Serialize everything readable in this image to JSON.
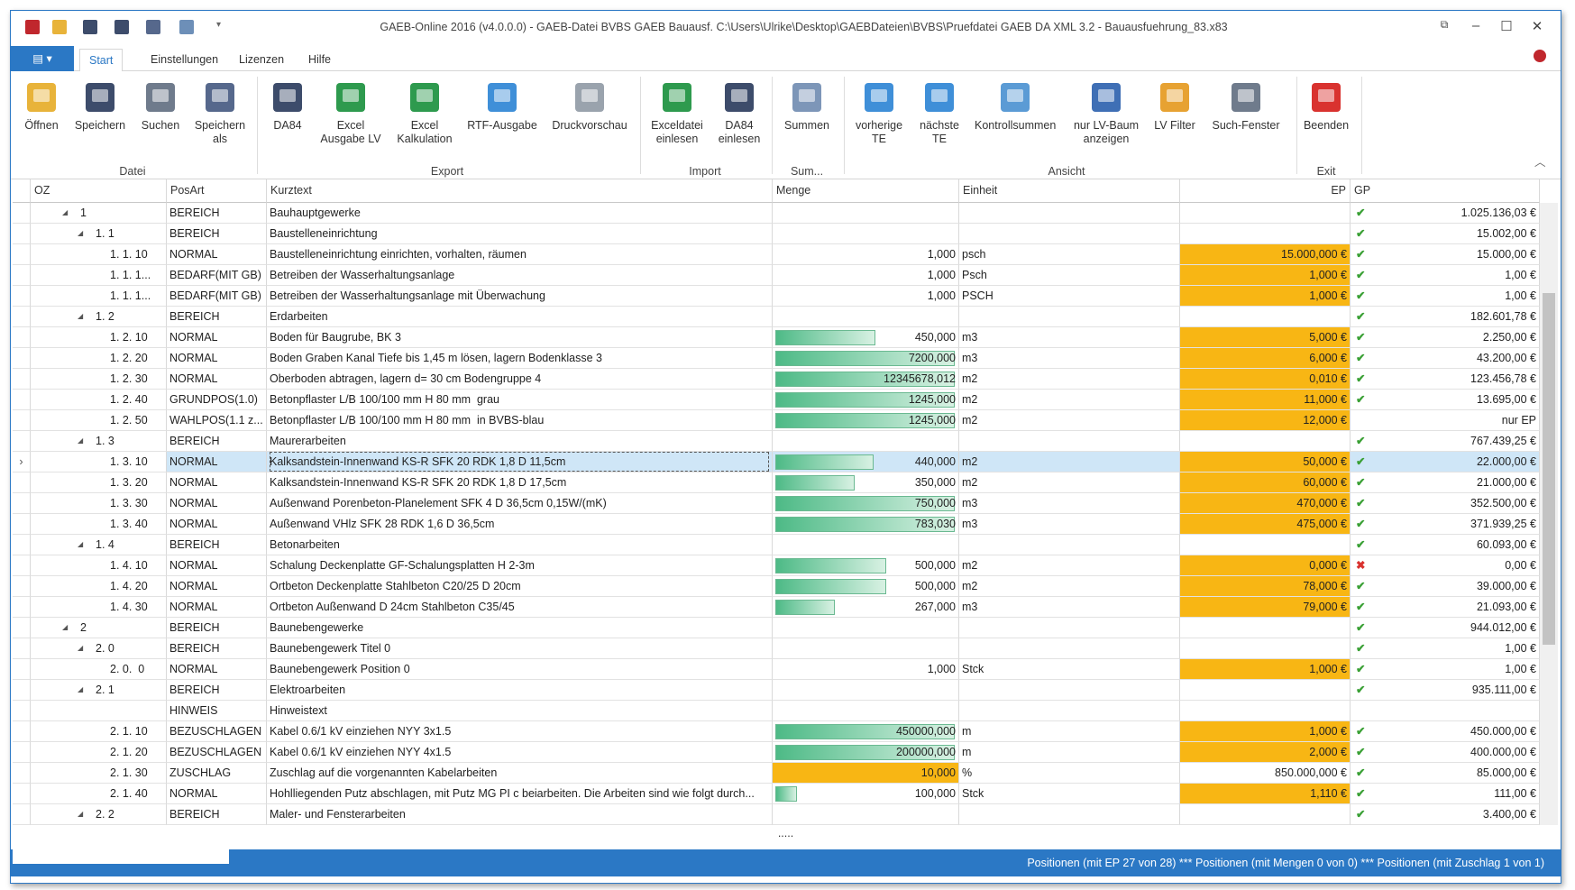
{
  "window": {
    "title": "GAEB-Online 2016 (v4.0.0.0) - GAEB-Datei  BVBS GAEB Bauausf. C:\\Users\\Ulrike\\Desktop\\GAEBDateien\\BVBS\\Pruefdatei GAEB DA XML 3.2 - Bauausfuehrung_83.x83"
  },
  "tabs": [
    "Start",
    "Einstellungen",
    "Lizenzen",
    "Hilfe"
  ],
  "ribbon": {
    "groups": [
      {
        "label": "Datei",
        "buttons": [
          "Öffnen",
          "Speichern",
          "Suchen",
          "Speichern\nals"
        ]
      },
      {
        "label": "Export",
        "buttons": [
          "DA84",
          "Excel\nAusgabe LV",
          "Excel\nKalkulation",
          "RTF-Ausgabe",
          "Druckvorschau"
        ]
      },
      {
        "label": "Import",
        "buttons": [
          "Exceldatei\neinlesen",
          "DA84\neinlesen"
        ]
      },
      {
        "label": "Sum...",
        "buttons": [
          "Summen"
        ]
      },
      {
        "label": "Ansicht",
        "buttons": [
          "vorherige\nTE",
          "nächste\nTE",
          "Kontrollsummen",
          "nur LV-Baum\nanzeigen",
          "LV Filter",
          "Such-Fenster"
        ]
      },
      {
        "label": "Exit",
        "buttons": [
          "Beenden"
        ]
      }
    ]
  },
  "table": {
    "columns": [
      "OZ",
      "PosArt",
      "Kurztext",
      "Menge",
      "Einheit",
      "EP",
      "GP"
    ],
    "rows": [
      {
        "oz": "1",
        "posart": "BEREICH",
        "kurztext": "Bauhauptgewerke",
        "check": "ok",
        "gp": "1.025.136,03 €"
      },
      {
        "oz": "1. 1",
        "posart": "BEREICH",
        "kurztext": "Baustelleneinrichtung",
        "check": "ok",
        "gp": "15.002,00 €"
      },
      {
        "oz": "1. 1. 10",
        "posart": "NORMAL",
        "kurztext": "Baustelleneinrichtung einrichten, vorhalten, räumen",
        "menge": "1,000",
        "einheit": "psch",
        "ep": "15.000,000 €",
        "highlight": "ep",
        "check": "ok",
        "gp": "15.000,00 €"
      },
      {
        "oz": "1. 1. 1...",
        "posart": "BEDARF(MIT GB)",
        "kurztext": "Betreiben der Wasserhaltungsanlage",
        "menge": "1,000",
        "einheit": "Psch",
        "ep": "1,000 €",
        "highlight": "ep",
        "check": "ok",
        "gp": "1,00 €"
      },
      {
        "oz": "1. 1. 1...",
        "posart": "BEDARF(MIT GB)",
        "kurztext": "Betreiben der Wasserhaltungsanlage mit Überwachung",
        "menge": "1,000",
        "einheit": "PSCH",
        "ep": "1,000 €",
        "highlight": "ep",
        "check": "ok",
        "gp": "1,00 €"
      },
      {
        "oz": "1. 2",
        "posart": "BEREICH",
        "kurztext": "Erdarbeiten",
        "check": "ok",
        "gp": "182.601,78 €"
      },
      {
        "oz": "1. 2. 10",
        "posart": "NORMAL",
        "kurztext": "Boden für Baugrube, BK 3",
        "menge": "450,000",
        "einheit": "m3",
        "ep": "5,000 €",
        "highlight": "ep",
        "check": "ok",
        "gp": "2.250,00 €"
      },
      {
        "oz": "1. 2. 20",
        "posart": "NORMAL",
        "kurztext": "Boden Graben Kanal Tiefe bis 1,45 m lösen, lagern Bodenklasse 3",
        "menge": "7200,000",
        "einheit": "m3",
        "ep": "6,000 €",
        "highlight": "ep",
        "check": "ok",
        "gp": "43.200,00 €"
      },
      {
        "oz": "1. 2. 30",
        "posart": "NORMAL",
        "kurztext": "Oberboden abtragen, lagern d= 30 cm Bodengruppe 4",
        "menge": "12345678,012",
        "einheit": "m2",
        "ep": "0,010 €",
        "highlight": "ep",
        "check": "ok",
        "gp": "123.456,78 €"
      },
      {
        "oz": "1. 2. 40",
        "posart": "GRUNDPOS(1.0)",
        "kurztext": "Betonpflaster L/B 100/100 mm H 80 mm  grau",
        "menge": "1245,000",
        "einheit": "m2",
        "ep": "11,000 €",
        "highlight": "ep",
        "check": "ok",
        "gp": "13.695,00 €"
      },
      {
        "oz": "1. 2. 50",
        "posart": "WAHLPOS(1.1 z...",
        "kurztext": "Betonpflaster L/B 100/100 mm H 80 mm  in BVBS-blau",
        "menge": "1245,000",
        "einheit": "m2",
        "ep": "12,000 €",
        "highlight": "ep",
        "gp": "nur EP"
      },
      {
        "oz": "1. 3",
        "posart": "BEREICH",
        "kurztext": "Maurerarbeiten",
        "check": "ok",
        "gp": "767.439,25 €"
      },
      {
        "oz": "1. 3. 10",
        "posart": "NORMAL",
        "kurztext": "Kalksandstein-Innenwand KS-R SFK 20 RDK 1,8 D 11,5cm",
        "menge": "440,000",
        "einheit": "m2",
        "ep": "50,000 €",
        "highlight": "ep",
        "check": "ok",
        "gp": "22.000,00 €",
        "selected": true
      },
      {
        "oz": "1. 3. 20",
        "posart": "NORMAL",
        "kurztext": "Kalksandstein-Innenwand KS-R SFK 20 RDK 1,8 D 17,5cm",
        "menge": "350,000",
        "einheit": "m2",
        "ep": "60,000 €",
        "highlight": "ep",
        "check": "ok",
        "gp": "21.000,00 €"
      },
      {
        "oz": "1. 3. 30",
        "posart": "NORMAL",
        "kurztext": "Außenwand Porenbeton-Planelement SFK 4 D 36,5cm 0,15W/(mK)",
        "menge": "750,000",
        "einheit": "m3",
        "ep": "470,000 €",
        "highlight": "ep",
        "check": "ok",
        "gp": "352.500,00 €"
      },
      {
        "oz": "1. 3. 40",
        "posart": "NORMAL",
        "kurztext": "Außenwand VHlz SFK 28 RDK 1,6 D 36,5cm",
        "menge": "783,030",
        "einheit": "m3",
        "ep": "475,000 €",
        "highlight": "ep",
        "check": "ok",
        "gp": "371.939,25 €"
      },
      {
        "oz": "1. 4",
        "posart": "BEREICH",
        "kurztext": "Betonarbeiten",
        "check": "ok",
        "gp": "60.093,00 €"
      },
      {
        "oz": "1. 4. 10",
        "posart": "NORMAL",
        "kurztext": "Schalung Deckenplatte GF-Schalungsplatten H 2-3m",
        "menge": "500,000",
        "einheit": "m2",
        "ep": "0,000 €",
        "highlight": "ep",
        "check": "error",
        "gp": "0,00 €"
      },
      {
        "oz": "1. 4. 20",
        "posart": "NORMAL",
        "kurztext": "Ortbeton Deckenplatte Stahlbeton C20/25 D 20cm",
        "menge": "500,000",
        "einheit": "m2",
        "ep": "78,000 €",
        "highlight": "ep",
        "check": "ok",
        "gp": "39.000,00 €"
      },
      {
        "oz": "1. 4. 30",
        "posart": "NORMAL",
        "kurztext": "Ortbeton Außenwand D 24cm Stahlbeton C35/45",
        "menge": "267,000",
        "einheit": "m3",
        "ep": "79,000 €",
        "highlight": "ep",
        "check": "ok",
        "gp": "21.093,00 €"
      },
      {
        "oz": "2",
        "posart": "BEREICH",
        "kurztext": "Baunebengewerke",
        "check": "ok",
        "gp": "944.012,00 €"
      },
      {
        "oz": "2. 0",
        "posart": "BEREICH",
        "kurztext": "Baunebengewerk Titel 0",
        "check": "ok",
        "gp": "1,00 €"
      },
      {
        "oz": "2. 0.  0",
        "posart": "NORMAL",
        "kurztext": "Baunebengewerk Position 0",
        "menge": "1,000",
        "einheit": "Stck",
        "ep": "1,000 €",
        "highlight": "ep",
        "check": "ok",
        "gp": "1,00 €"
      },
      {
        "oz": "2. 1",
        "posart": "BEREICH",
        "kurztext": "Elektroarbeiten",
        "check": "ok",
        "gp": "935.111,00 €"
      },
      {
        "posart": "HINWEIS",
        "kurztext": "Hinweistext"
      },
      {
        "oz": "2. 1. 10",
        "posart": "BEZUSCHLAGEN",
        "kurztext": "Kabel 0.6/1 kV einziehen NYY 3x1.5",
        "menge": "450000,000",
        "einheit": "m",
        "ep": "1,000 €",
        "highlight": "ep",
        "check": "ok",
        "gp": "450.000,00 €"
      },
      {
        "oz": "2. 1. 20",
        "posart": "BEZUSCHLAGEN",
        "kurztext": "Kabel 0.6/1 kV einziehen NYY 4x1.5",
        "menge": "200000,000",
        "einheit": "m",
        "ep": "2,000 €",
        "highlight": "ep",
        "check": "ok",
        "gp": "400.000,00 €"
      },
      {
        "oz": "2. 1. 30",
        "posart": "ZUSCHLAG",
        "kurztext": "Zuschlag auf die vorgenannten Kabelarbeiten",
        "menge": "10,000",
        "einheit": "%",
        "ep": "850.000,000 €",
        "highlight": "menge",
        "check": "ok",
        "gp": "85.000,00 €"
      },
      {
        "oz": "2. 1. 40",
        "posart": "NORMAL",
        "kurztext": "Hohlliegenden Putz abschlagen, mit Putz MG PI c beiarbeiten. Die Arbeiten sind wie folgt durch...",
        "menge": "100,000",
        "einheit": "Stck",
        "ep": "1,110 €",
        "highlight": "ep",
        "check": "ok",
        "gp": "111,00 €"
      },
      {
        "oz": "2. 2",
        "posart": "BEREICH",
        "kurztext": "Maler- und Fensterarbeiten",
        "check": "ok",
        "gp": "3.400,00 €"
      }
    ]
  },
  "footer": {
    "more": ".....",
    "status": "Positionen (mit EP 27 von 28) *** Positionen (mit Mengen 0 von 0) *** Positionen (mit Zuschlag 1 von 1)"
  }
}
